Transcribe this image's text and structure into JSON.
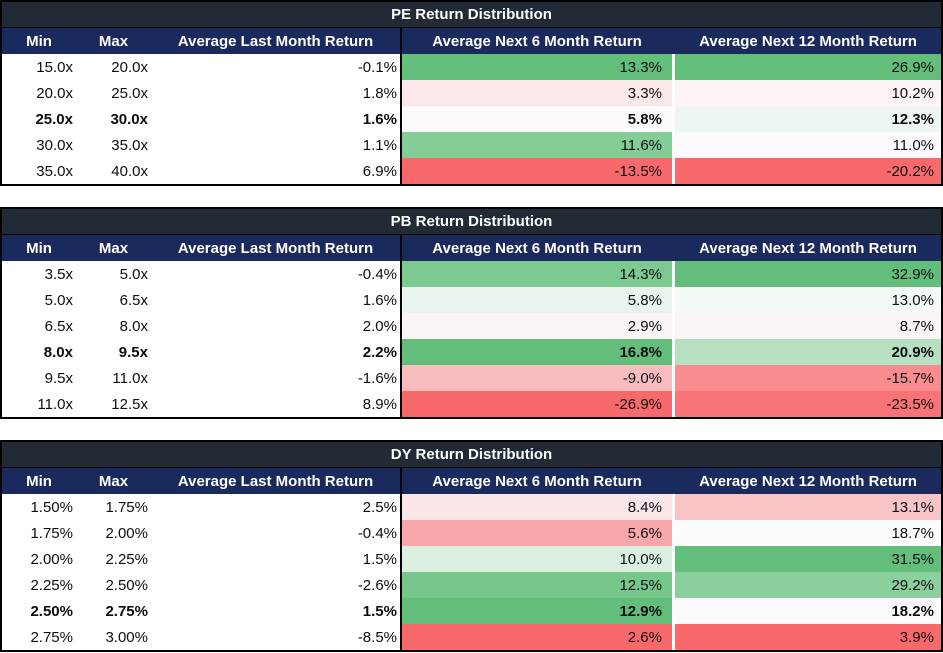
{
  "theme": {
    "page_bg": "#FFFFFF",
    "table_border": "#000000",
    "title_bg": "#222B35",
    "title_text": "#FFFFFF",
    "header_bg": "#1A2A5C",
    "header_text": "#FFFFFF",
    "scale_positive_full": "#63BE7B",
    "scale_negative_full": "#F8696B",
    "scale_neutral": "#FCFCFF"
  },
  "chart_data": [
    {
      "type": "table",
      "title": "PE Return Distribution",
      "columns": [
        "Min",
        "Max",
        "Average Last Month Return",
        "Average Next 6 Month Return",
        "Average Next 12 Month Return"
      ],
      "rows": [
        {
          "min": "15.0x",
          "max": "20.0x",
          "last_month": "-0.1%",
          "next6": "13.3%",
          "next6_bg": "#63BE7B",
          "next12": "26.9%",
          "next12_bg": "#63BE7B",
          "bold": false
        },
        {
          "min": "20.0x",
          "max": "25.0x",
          "last_month": "1.8%",
          "next6": "3.3%",
          "next6_bg": "#FBE8E9",
          "next12": "10.2%",
          "next12_bg": "#FCF4F5",
          "bold": false
        },
        {
          "min": "25.0x",
          "max": "30.0x",
          "last_month": "1.6%",
          "next6": "5.8%",
          "next6_bg": "#FCFAFC",
          "next12": "12.3%",
          "next12_bg": "#EDF6F0",
          "bold": true
        },
        {
          "min": "30.0x",
          "max": "35.0x",
          "last_month": "1.1%",
          "next6": "11.6%",
          "next6_bg": "#84CD96",
          "next12": "11.0%",
          "next12_bg": "#FCFAFC",
          "bold": false
        },
        {
          "min": "35.0x",
          "max": "40.0x",
          "last_month": "6.9%",
          "next6": "-13.5%",
          "next6_bg": "#F8696B",
          "next12": "-20.2%",
          "next12_bg": "#F8696B",
          "bold": false
        }
      ]
    },
    {
      "type": "table",
      "title": "PB Return Distribution",
      "columns": [
        "Min",
        "Max",
        "Average Last Month Return",
        "Average Next 6 Month Return",
        "Average Next 12 Month Return"
      ],
      "rows": [
        {
          "min": "3.5x",
          "max": "5.0x",
          "last_month": "-0.4%",
          "next6": "14.3%",
          "next6_bg": "#7CC991",
          "next12": "32.9%",
          "next12_bg": "#63BE7B",
          "bold": false
        },
        {
          "min": "5.0x",
          "max": "6.5x",
          "last_month": "1.6%",
          "next6": "5.8%",
          "next6_bg": "#E8F4EC",
          "next12": "13.0%",
          "next12_bg": "#F4FAF6",
          "bold": false
        },
        {
          "min": "6.5x",
          "max": "8.0x",
          "last_month": "2.0%",
          "next6": "2.9%",
          "next6_bg": "#FAF4F5",
          "next12": "8.7%",
          "next12_bg": "#FBF4F5",
          "bold": false
        },
        {
          "min": "8.0x",
          "max": "9.5x",
          "last_month": "2.2%",
          "next6": "16.8%",
          "next6_bg": "#63BE7B",
          "next12": "20.9%",
          "next12_bg": "#B7E0C2",
          "bold": true
        },
        {
          "min": "9.5x",
          "max": "11.0x",
          "last_month": "-1.6%",
          "next6": "-9.0%",
          "next6_bg": "#FABDBF",
          "next12": "-15.7%",
          "next12_bg": "#F98C8E",
          "bold": false
        },
        {
          "min": "11.0x",
          "max": "12.5x",
          "last_month": "8.9%",
          "next6": "-26.9%",
          "next6_bg": "#F8696B",
          "next12": "-23.5%",
          "next12_bg": "#F87375",
          "bold": false
        }
      ]
    },
    {
      "type": "table",
      "title": "DY Return Distribution",
      "columns": [
        "Min",
        "Max",
        "Average Last Month Return",
        "Average Next 6 Month Return",
        "Average Next 12 Month Return"
      ],
      "rows": [
        {
          "min": "1.50%",
          "max": "1.75%",
          "last_month": "2.5%",
          "next6": "8.4%",
          "next6_bg": "#FBE7E8",
          "next12": "13.1%",
          "next12_bg": "#F9C4C6",
          "bold": false
        },
        {
          "min": "1.75%",
          "max": "2.00%",
          "last_month": "-0.4%",
          "next6": "5.6%",
          "next6_bg": "#F9A7A9",
          "next12": "18.7%",
          "next12_bg": "#FCFBFE",
          "bold": false
        },
        {
          "min": "2.00%",
          "max": "2.25%",
          "last_month": "1.5%",
          "next6": "10.0%",
          "next6_bg": "#DBF0E1",
          "next12": "31.5%",
          "next12_bg": "#63BE7B",
          "bold": false
        },
        {
          "min": "2.25%",
          "max": "2.50%",
          "last_month": "-2.6%",
          "next6": "12.5%",
          "next6_bg": "#77C78C",
          "next12": "29.2%",
          "next12_bg": "#8BCF9D",
          "bold": false
        },
        {
          "min": "2.50%",
          "max": "2.75%",
          "last_month": "1.5%",
          "next6": "12.9%",
          "next6_bg": "#63BE7B",
          "next12": "18.2%",
          "next12_bg": "#FCFAFC",
          "bold": true
        },
        {
          "min": "2.75%",
          "max": "3.00%",
          "last_month": "-8.5%",
          "next6": "2.6%",
          "next6_bg": "#F8696B",
          "next12": "3.9%",
          "next12_bg": "#F8696B",
          "bold": false
        }
      ]
    }
  ]
}
